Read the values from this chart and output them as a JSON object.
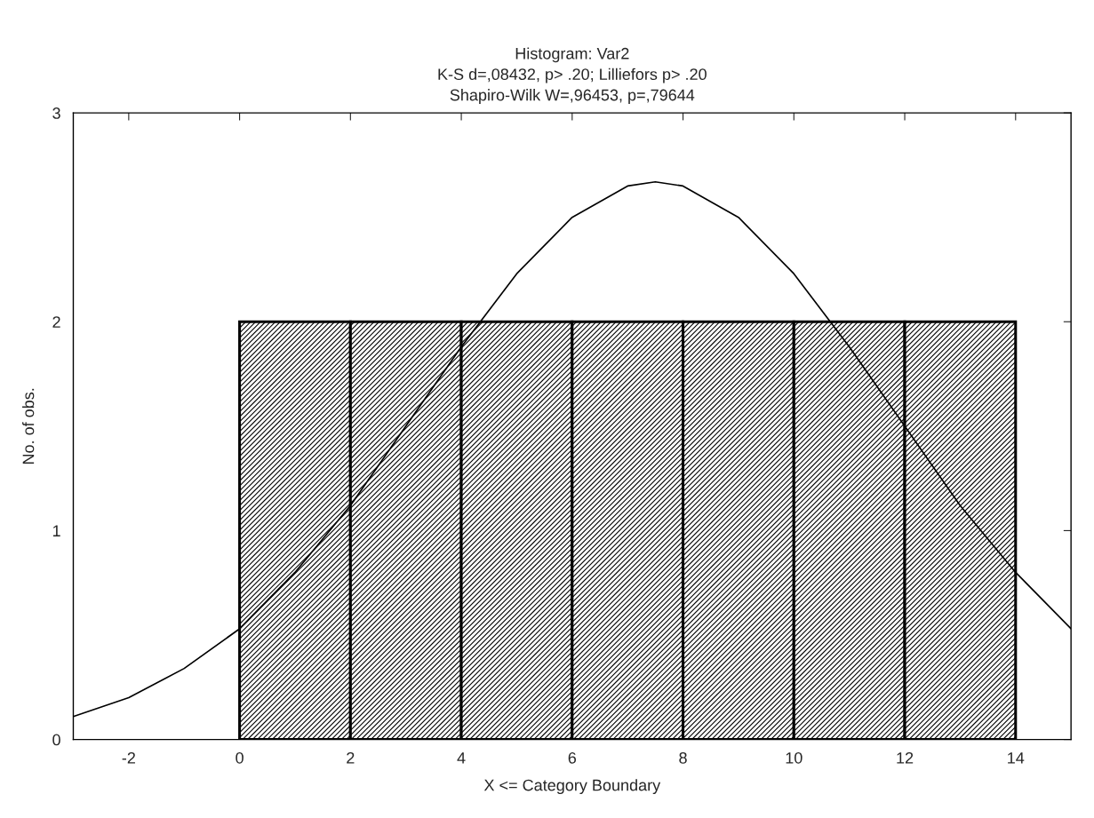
{
  "chart_data": {
    "type": "histogram",
    "title": "Histogram: Var2",
    "subtitle": "K-S d=,08432, p> .20; Lilliefors p> .20\nShapiro-Wilk W=,96453, p=,79644",
    "xlabel": "X <= Category Boundary",
    "ylabel": "No. of obs.",
    "bins": [
      0,
      2,
      4,
      6,
      8,
      10,
      12,
      14
    ],
    "values": [
      2,
      2,
      2,
      2,
      2,
      2,
      2
    ],
    "color": "#000000",
    "series": [
      {
        "type": "line",
        "color": "#000000",
        "x": [
          -3,
          -2,
          -1,
          0,
          1,
          2,
          3,
          4,
          5,
          6,
          7,
          7.5,
          8,
          9,
          10,
          11,
          12,
          13,
          14,
          15
        ],
        "values": [
          0.11,
          0.2,
          0.34,
          0.53,
          0.8,
          1.12,
          1.5,
          1.88,
          2.23,
          2.5,
          2.65,
          2.67,
          2.65,
          2.5,
          2.23,
          1.88,
          1.5,
          1.12,
          0.8,
          0.53
        ]
      }
    ],
    "xlim": [
      -3,
      15
    ],
    "ylim": [
      0,
      3
    ],
    "xticks": [
      -2,
      0,
      2,
      4,
      6,
      8,
      10,
      12,
      14
    ],
    "yticks": [
      0,
      1,
      2,
      3
    ],
    "grid": false,
    "legend": false
  }
}
